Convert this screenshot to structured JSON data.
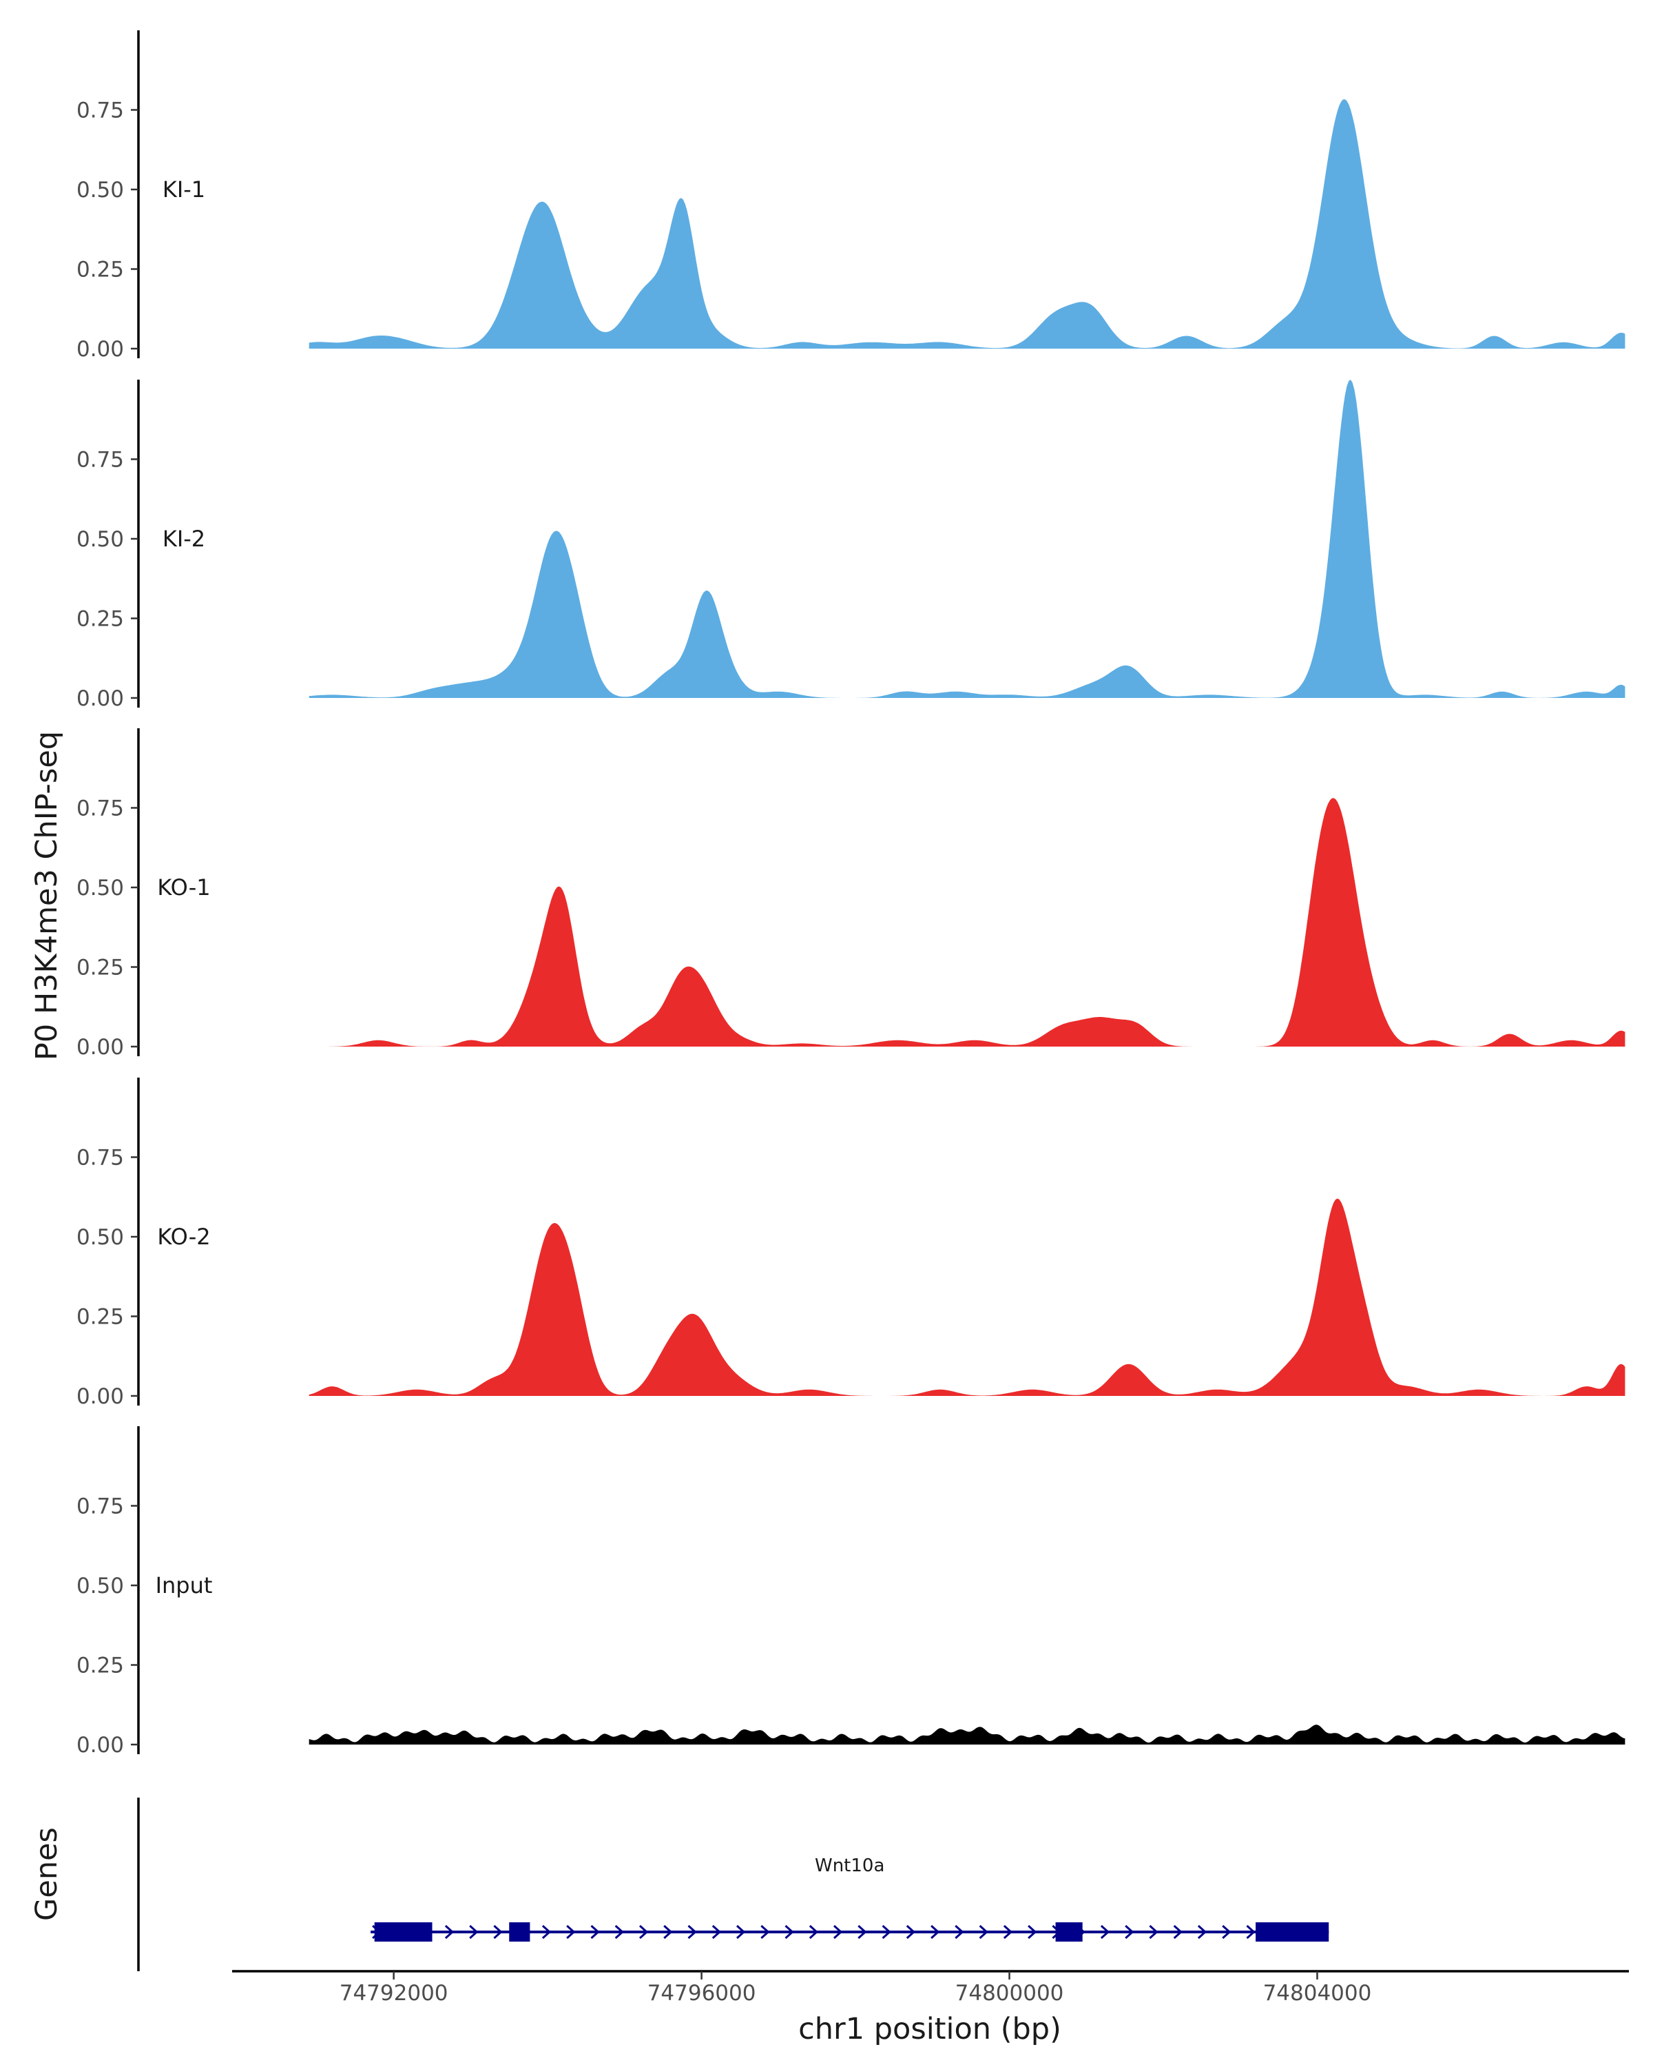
{
  "chart_data": {
    "type": "area",
    "ylabel": "P0 H3K4me3 ChIP-seq",
    "xlabel": "chr1 position (bp)",
    "ylim": [
      0,
      1.0
    ],
    "yticks": [
      0.0,
      0.25,
      0.5,
      0.75
    ],
    "ytick_labels": [
      "0.00",
      "0.25",
      "0.50",
      "0.75"
    ],
    "xlim": [
      74789900,
      74808050
    ],
    "xticks": [
      74792000,
      74796000,
      74800000,
      74804000
    ],
    "xtick_labels": [
      "74792000",
      "74796000",
      "74800000",
      "74804000"
    ],
    "signal_range": [
      74790900,
      74808000
    ],
    "colors": {
      "KI": "#5dade2",
      "KO": "#ea2b2b",
      "Input": "#000000",
      "gene": "#00008b"
    },
    "tracks": [
      {
        "name": "KI-1",
        "color": "#5dade2",
        "peaks": [
          [
            74791000,
            0.02,
            250
          ],
          [
            74791650,
            0.02,
            250
          ],
          [
            74792000,
            0.03,
            300
          ],
          [
            74793900,
            0.43,
            330
          ],
          [
            74794050,
            0.04,
            200
          ],
          [
            74794500,
            0.02,
            200
          ],
          [
            74795350,
            0.2,
            300
          ],
          [
            74795750,
            0.36,
            160
          ],
          [
            74796050,
            0.06,
            250
          ],
          [
            74797300,
            0.02,
            220
          ],
          [
            74798200,
            0.02,
            350
          ],
          [
            74799100,
            0.02,
            300
          ],
          [
            74800600,
            0.1,
            250
          ],
          [
            74801050,
            0.12,
            230
          ],
          [
            74802300,
            0.04,
            200
          ],
          [
            74803600,
            0.08,
            250
          ],
          [
            74804350,
            0.78,
            280
          ],
          [
            74805000,
            0.03,
            300
          ],
          [
            74806300,
            0.04,
            150
          ],
          [
            74807200,
            0.02,
            200
          ],
          [
            74807950,
            0.05,
            130
          ]
        ]
      },
      {
        "name": "KI-2",
        "color": "#5dade2",
        "peaks": [
          [
            74791200,
            0.01,
            300
          ],
          [
            74792500,
            0.02,
            250
          ],
          [
            74793000,
            0.04,
            300
          ],
          [
            74793650,
            0.08,
            300
          ],
          [
            74794090,
            0.46,
            240
          ],
          [
            74794400,
            0.12,
            200
          ],
          [
            74795600,
            0.08,
            220
          ],
          [
            74796050,
            0.29,
            180
          ],
          [
            74796300,
            0.08,
            200
          ],
          [
            74797000,
            0.02,
            250
          ],
          [
            74798650,
            0.02,
            200
          ],
          [
            74799300,
            0.02,
            250
          ],
          [
            74800000,
            0.01,
            250
          ],
          [
            74801100,
            0.04,
            280
          ],
          [
            74801550,
            0.09,
            220
          ],
          [
            74802600,
            0.01,
            300
          ],
          [
            74804250,
            0.2,
            250
          ],
          [
            74804450,
            0.85,
            200
          ],
          [
            74805400,
            0.01,
            250
          ],
          [
            74806400,
            0.02,
            150
          ],
          [
            74807500,
            0.02,
            200
          ],
          [
            74807950,
            0.04,
            100
          ]
        ]
      },
      {
        "name": "KO-1",
        "color": "#ea2b2b",
        "peaks": [
          [
            74791800,
            0.02,
            200
          ],
          [
            74793000,
            0.02,
            150
          ],
          [
            74794000,
            0.27,
            280
          ],
          [
            74794200,
            0.28,
            180
          ],
          [
            74795250,
            0.06,
            200
          ],
          [
            74795700,
            0.15,
            200
          ],
          [
            74796000,
            0.17,
            230
          ],
          [
            74796500,
            0.02,
            200
          ],
          [
            74797300,
            0.01,
            250
          ],
          [
            74798550,
            0.02,
            300
          ],
          [
            74799550,
            0.02,
            250
          ],
          [
            74800700,
            0.06,
            250
          ],
          [
            74801200,
            0.08,
            250
          ],
          [
            74801650,
            0.06,
            200
          ],
          [
            74804000,
            0.35,
            200
          ],
          [
            74804300,
            0.62,
            230
          ],
          [
            74804700,
            0.1,
            200
          ],
          [
            74805500,
            0.02,
            150
          ],
          [
            74806500,
            0.04,
            150
          ],
          [
            74807300,
            0.02,
            200
          ],
          [
            74807950,
            0.05,
            120
          ]
        ]
      },
      {
        "name": "KO-2",
        "color": "#ea2b2b",
        "peaks": [
          [
            74791200,
            0.03,
            150
          ],
          [
            74792300,
            0.02,
            250
          ],
          [
            74793300,
            0.05,
            200
          ],
          [
            74793900,
            0.25,
            230
          ],
          [
            74794150,
            0.35,
            230
          ],
          [
            74794400,
            0.12,
            180
          ],
          [
            74795500,
            0.08,
            200
          ],
          [
            74795900,
            0.24,
            250
          ],
          [
            74796400,
            0.05,
            250
          ],
          [
            74797400,
            0.02,
            250
          ],
          [
            74799100,
            0.02,
            200
          ],
          [
            74800300,
            0.02,
            250
          ],
          [
            74801550,
            0.1,
            230
          ],
          [
            74802700,
            0.02,
            250
          ],
          [
            74803800,
            0.12,
            300
          ],
          [
            74804250,
            0.55,
            200
          ],
          [
            74804600,
            0.2,
            180
          ],
          [
            74805150,
            0.03,
            250
          ],
          [
            74806100,
            0.02,
            250
          ],
          [
            74807500,
            0.03,
            150
          ],
          [
            74807950,
            0.1,
            120
          ]
        ]
      },
      {
        "name": "Input",
        "color": "#000000",
        "baseline": 0.02,
        "peaks": [
          [
            74792100,
            0.02,
            200
          ],
          [
            74792700,
            0.02,
            200
          ],
          [
            74795300,
            0.02,
            250
          ],
          [
            74796700,
            0.02,
            250
          ],
          [
            74799400,
            0.03,
            300
          ],
          [
            74801000,
            0.02,
            250
          ],
          [
            74804000,
            0.03,
            250
          ],
          [
            74807850,
            0.02,
            120
          ]
        ]
      }
    ],
    "gene_track": {
      "label": "Genes",
      "gene": {
        "name": "Wnt10a",
        "start": 74791700,
        "end": 74804150,
        "strand": "+",
        "exons": [
          [
            74791750,
            74792500
          ],
          [
            74793500,
            74793770
          ],
          [
            74800600,
            74800950
          ],
          [
            74803200,
            74804150
          ]
        ]
      }
    }
  }
}
